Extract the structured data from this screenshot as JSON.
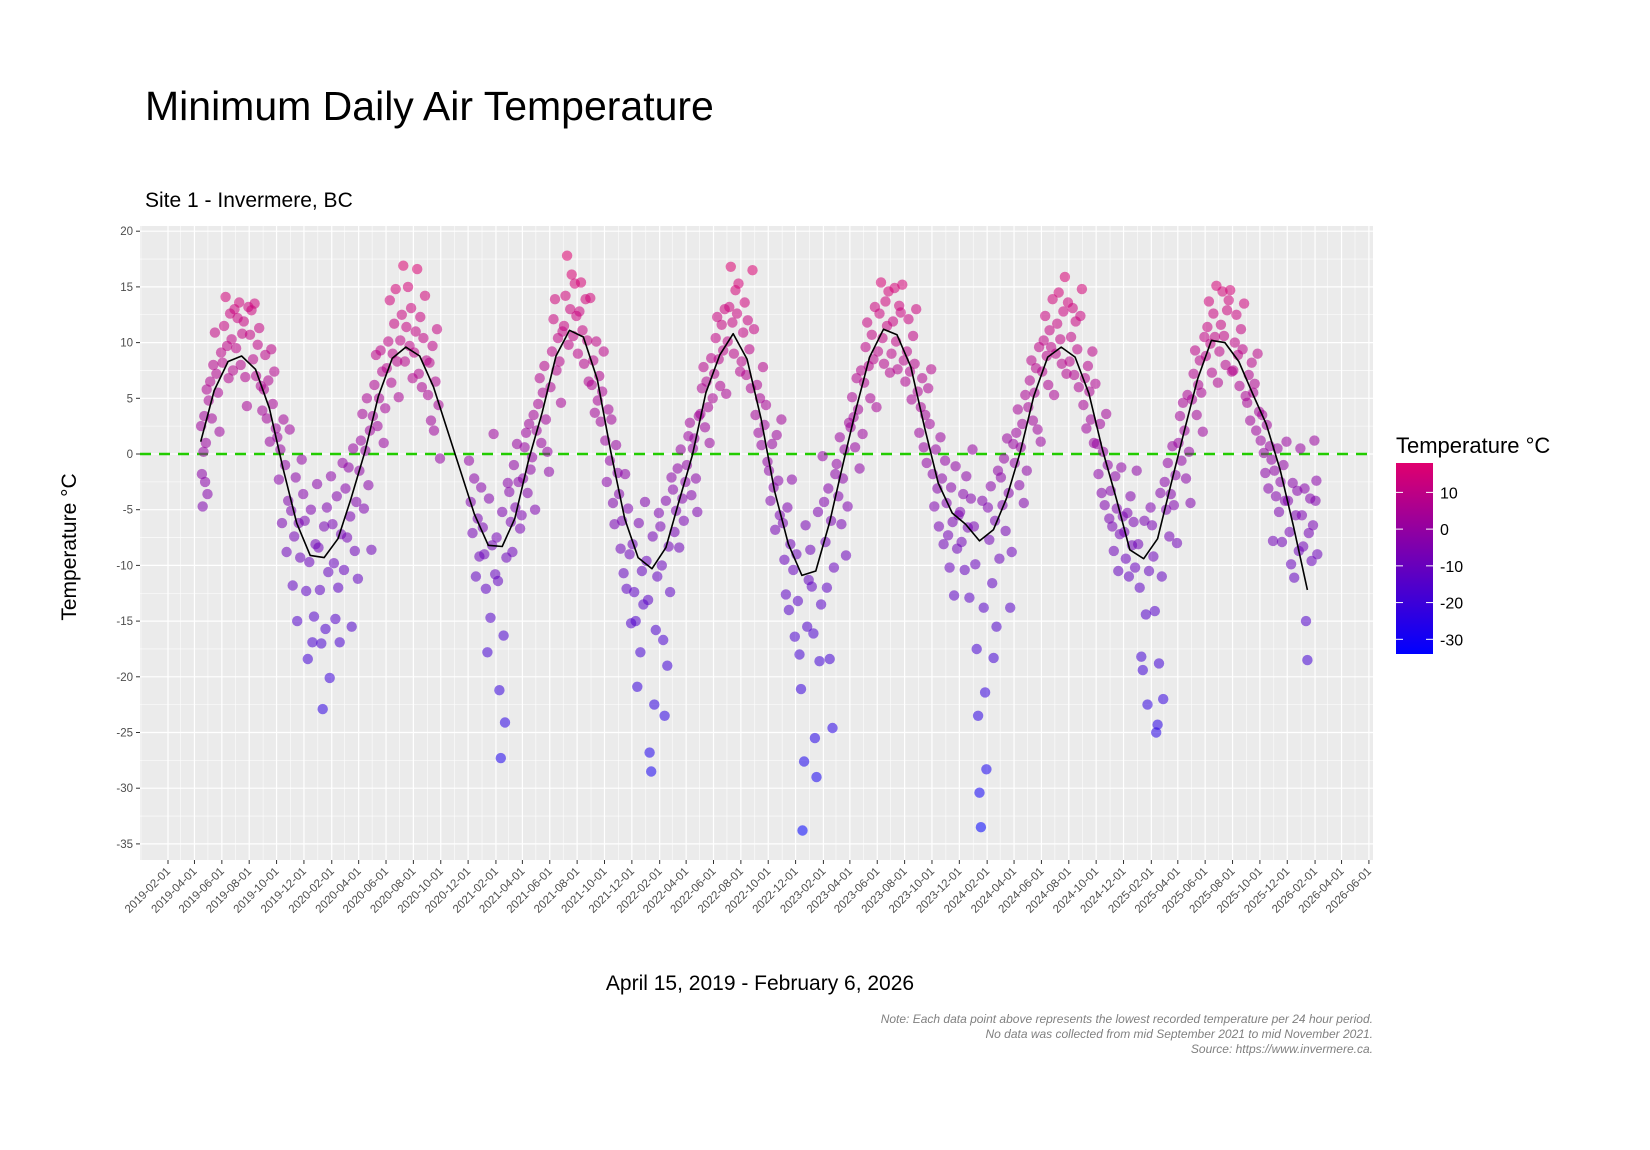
{
  "chart_data": {
    "type": "scatter",
    "title": "Minimum Daily Air Temperature",
    "subtitle": "Site 1 - Invermere, BC",
    "xlabel": "April 15, 2019 - February 6, 2026",
    "ylabel": "Temperature °C",
    "caption": [
      "Note: Each data point above represents the lowest recorded temperature per 24 hour period.",
      "No data was collected from mid September 2021 to mid November 2021.",
      "Source: https://www.invermere.ca."
    ],
    "xlim": [
      "2019-02-01",
      "2026-06-01"
    ],
    "ylim": [
      -35,
      20
    ],
    "y_ticks": [
      20,
      15,
      10,
      5,
      0,
      -5,
      -10,
      -15,
      -20,
      -25,
      -30,
      -35
    ],
    "x_ticks": [
      "2019-02-01",
      "2019-04-01",
      "2019-06-01",
      "2019-08-01",
      "2019-10-01",
      "2019-12-01",
      "2020-02-01",
      "2020-04-01",
      "2020-06-01",
      "2020-08-01",
      "2020-10-01",
      "2020-12-01",
      "2021-02-01",
      "2021-04-01",
      "2021-06-01",
      "2021-08-01",
      "2021-10-01",
      "2021-12-01",
      "2022-02-01",
      "2022-04-01",
      "2022-06-01",
      "2022-08-01",
      "2022-10-01",
      "2022-12-01",
      "2023-02-01",
      "2023-04-01",
      "2023-06-01",
      "2023-08-01",
      "2023-10-01",
      "2023-12-01",
      "2024-02-01",
      "2024-04-01",
      "2024-06-01",
      "2024-08-01",
      "2024-10-01",
      "2024-12-01",
      "2025-02-01",
      "2025-04-01",
      "2025-06-01",
      "2025-08-01",
      "2025-10-01",
      "2025-12-01",
      "2026-02-01",
      "2026-04-01",
      "2026-06-01"
    ],
    "grid": true,
    "reference_line": {
      "y": 0,
      "color": "#22cc00",
      "style": "dashed"
    },
    "legend": {
      "title": "Temperature °C",
      "placement": "right",
      "type": "colorbar",
      "ticks": [
        10,
        0,
        -10,
        -20,
        -30
      ],
      "range": [
        -34,
        18
      ],
      "low_color": "#0000ff",
      "high_color": "#e0006e"
    },
    "monthly_mean_line": {
      "color": "#000000",
      "points": [
        [
          "2019-04",
          1.1
        ],
        [
          "2019-05",
          5.7
        ],
        [
          "2019-06",
          8.3
        ],
        [
          "2019-07",
          8.8
        ],
        [
          "2019-08",
          7.6
        ],
        [
          "2019-09",
          4.1
        ],
        [
          "2019-10",
          -1.2
        ],
        [
          "2019-11",
          -6.2
        ],
        [
          "2019-12",
          -9.1
        ],
        [
          "2020-01",
          -9.3
        ],
        [
          "2020-02",
          -7.6
        ],
        [
          "2020-03",
          -4.0
        ],
        [
          "2020-04",
          0.2
        ],
        [
          "2020-05",
          5.2
        ],
        [
          "2020-06",
          8.6
        ],
        [
          "2020-07",
          9.6
        ],
        [
          "2020-08",
          8.8
        ],
        [
          "2020-09",
          6.0
        ],
        [
          "2020-12",
          -5.4
        ],
        [
          "2021-01",
          -8.2
        ],
        [
          "2021-02",
          -8.3
        ],
        [
          "2021-03",
          -5.8
        ],
        [
          "2021-04",
          -0.5
        ],
        [
          "2021-05",
          3.7
        ],
        [
          "2021-06",
          8.8
        ],
        [
          "2021-07",
          11.1
        ],
        [
          "2021-08",
          10.5
        ],
        [
          "2021-09",
          6.7
        ],
        [
          "2021-10",
          0.2
        ],
        [
          "2021-11",
          -5.8
        ],
        [
          "2021-12",
          -9.3
        ],
        [
          "2022-01",
          -10.3
        ],
        [
          "2022-02",
          -8.4
        ],
        [
          "2022-03",
          -4.4
        ],
        [
          "2022-04",
          -0.1
        ],
        [
          "2022-05",
          5.5
        ],
        [
          "2022-06",
          8.9
        ],
        [
          "2022-07",
          10.8
        ],
        [
          "2022-08",
          8.5
        ],
        [
          "2022-09",
          3.2
        ],
        [
          "2022-10",
          -3.3
        ],
        [
          "2022-11",
          -8.1
        ],
        [
          "2022-12",
          -10.9
        ],
        [
          "2023-01",
          -10.5
        ],
        [
          "2023-02",
          -6.1
        ],
        [
          "2023-03",
          -1.2
        ],
        [
          "2023-04",
          4.1
        ],
        [
          "2023-05",
          8.7
        ],
        [
          "2023-06",
          11.2
        ],
        [
          "2023-07",
          10.7
        ],
        [
          "2023-08",
          7.8
        ],
        [
          "2023-09",
          2.3
        ],
        [
          "2023-10",
          -2.6
        ],
        [
          "2023-11",
          -5.3
        ],
        [
          "2023-12",
          -6.3
        ],
        [
          "2024-01",
          -7.8
        ],
        [
          "2024-02",
          -6.8
        ],
        [
          "2024-03",
          -4.0
        ],
        [
          "2024-04",
          0.2
        ],
        [
          "2024-05",
          5.2
        ],
        [
          "2024-06",
          8.7
        ],
        [
          "2024-07",
          9.6
        ],
        [
          "2024-08",
          8.7
        ],
        [
          "2024-09",
          5.4
        ],
        [
          "2024-10",
          0.4
        ],
        [
          "2024-11",
          -4.0
        ],
        [
          "2024-12",
          -8.6
        ],
        [
          "2025-01",
          -9.4
        ],
        [
          "2025-02",
          -7.6
        ],
        [
          "2025-03",
          -3.0
        ],
        [
          "2025-04",
          2.0
        ],
        [
          "2025-05",
          6.7
        ],
        [
          "2025-06",
          10.2
        ],
        [
          "2025-07",
          10.0
        ],
        [
          "2025-08",
          8.3
        ],
        [
          "2025-09",
          5.4
        ],
        [
          "2025-10",
          2.7
        ],
        [
          "2025-11",
          -1.4
        ],
        [
          "2025-12",
          -6.5
        ],
        [
          "2026-01",
          -12.2
        ]
      ]
    },
    "daily_minimums_by_month": {
      "2019-04": [
        2.5,
        -1.8,
        -4.7,
        0.2,
        3.4,
        -2.5,
        1.0,
        5.8,
        -3.6
      ],
      "2019-05": [
        4.8,
        6.5,
        3.2,
        8.0,
        10.9,
        7.2,
        5.5,
        2.0,
        9.1
      ],
      "2019-06": [
        8.2,
        11.5,
        14.1,
        9.7,
        6.8,
        12.6,
        10.3,
        7.5,
        13.0
      ],
      "2019-07": [
        9.5,
        12.2,
        13.6,
        8.0,
        10.8,
        11.9,
        6.9,
        4.3,
        13.2
      ],
      "2019-08": [
        10.7,
        12.9,
        8.5,
        13.5,
        7.0,
        9.8,
        11.3,
        6.1,
        3.9
      ],
      "2019-09": [
        5.8,
        8.9,
        3.2,
        6.6,
        1.1,
        9.4,
        4.5,
        7.4,
        2.3
      ],
      "2019-10": [
        1.5,
        -2.3,
        0.4,
        -6.2,
        3.1,
        -1.0,
        -8.8,
        -4.2,
        2.2
      ],
      "2019-11": [
        -5.1,
        -11.8,
        -7.4,
        -2.1,
        -15.0,
        -6.2,
        -9.3,
        -0.5,
        -3.6
      ],
      "2019-12": [
        -6.0,
        -12.3,
        -18.4,
        -9.7,
        -5.0,
        -16.9,
        -14.6,
        -8.1,
        -2.7
      ],
      "2020-01": [
        -8.4,
        -12.2,
        -17.0,
        -22.9,
        -6.5,
        -15.7,
        -4.8,
        -10.6,
        -20.1,
        -2.0
      ],
      "2020-02": [
        -6.3,
        -9.8,
        -14.8,
        -3.8,
        -12.0,
        -16.9,
        -7.2,
        -0.8,
        -10.4
      ],
      "2020-03": [
        -3.1,
        -7.5,
        -1.2,
        -5.6,
        -15.5,
        0.5,
        -8.7,
        -4.3,
        -11.2
      ],
      "2020-04": [
        -1.5,
        1.2,
        3.6,
        -4.9,
        0.3,
        5.0,
        -2.8,
        2.1,
        -8.6
      ],
      "2020-05": [
        3.4,
        6.2,
        8.9,
        2.5,
        5.0,
        9.3,
        7.4,
        1.0,
        4.1
      ],
      "2020-06": [
        7.7,
        10.1,
        13.8,
        6.4,
        9.0,
        11.7,
        14.8,
        8.3,
        5.1
      ],
      "2020-07": [
        10.2,
        12.5,
        16.9,
        8.3,
        11.4,
        15.0,
        9.7,
        13.1,
        6.8
      ],
      "2020-08": [
        9.1,
        11.0,
        16.6,
        7.2,
        12.3,
        6.0,
        10.4,
        14.2,
        8.4
      ],
      "2020-09": [
        5.3,
        8.2,
        3.0,
        9.7,
        2.1,
        6.5,
        11.2,
        4.4,
        -0.4
      ],
      "2020-12": [
        -0.6,
        -4.3,
        -7.1,
        -2.2,
        -11.0,
        -5.8,
        -9.2,
        -3.0
      ],
      "2021-01": [
        -6.6,
        -9.0,
        -12.1,
        -17.8,
        -4.0,
        -14.7,
        -8.2,
        1.8,
        -10.8
      ],
      "2021-02": [
        -7.5,
        -11.4,
        -21.2,
        -27.3,
        -5.2,
        -16.3,
        -24.1,
        -9.3,
        -2.6
      ],
      "2021-03": [
        -3.4,
        -6.1,
        -8.8,
        -1.0,
        -4.8,
        0.9,
        -2.5,
        -6.7,
        -5.5
      ],
      "2021-04": [
        -2.2,
        0.6,
        1.9,
        -3.5,
        2.7,
        -1.4,
        -0.3,
        3.5,
        -5.0
      ],
      "2021-05": [
        2.1,
        4.5,
        6.8,
        1.0,
        5.5,
        7.9,
        3.1,
        0.2,
        -1.6
      ],
      "2021-06": [
        6.0,
        9.2,
        12.1,
        13.9,
        7.5,
        10.4,
        8.3,
        4.6,
        11.0
      ],
      "2021-07": [
        11.5,
        14.2,
        17.8,
        9.8,
        13.0,
        16.1,
        10.6,
        15.3,
        12.4
      ],
      "2021-08": [
        9.0,
        12.8,
        15.4,
        11.1,
        8.1,
        13.9,
        10.2,
        6.5,
        14.0
      ],
      "2021-09": [
        6.2,
        8.4,
        3.7,
        10.1,
        4.8,
        7.0,
        2.9,
        5.6,
        9.2
      ],
      "2021-10": [
        1.2,
        -2.5,
        4.0,
        -0.6,
        3.1,
        -4.4,
        -6.3,
        0.8,
        -1.7
      ],
      "2021-11": [
        -3.6,
        -8.5,
        -6.0,
        -10.7,
        -1.8,
        -12.1,
        -4.9,
        -9.0,
        -15.2
      ],
      "2021-12": [
        -8.1,
        -12.4,
        -15.0,
        -20.9,
        -6.2,
        -17.8,
        -10.5,
        -13.5,
        -4.3
      ],
      "2022-01": [
        -9.6,
        -13.1,
        -26.8,
        -28.5,
        -7.4,
        -22.5,
        -15.8,
        -11.0,
        -5.3
      ],
      "2022-02": [
        -6.5,
        -10.0,
        -16.7,
        -23.5,
        -4.2,
        -19.0,
        -8.3,
        -12.4,
        -2.1
      ],
      "2022-03": [
        -3.2,
        -7.0,
        -5.1,
        -1.3,
        -8.4,
        0.4,
        -4.0,
        -6.0,
        -2.5
      ],
      "2022-04": [
        -1.0,
        1.6,
        2.8,
        -3.7,
        0.5,
        1.4,
        -2.2,
        -5.2,
        3.4
      ],
      "2022-05": [
        3.6,
        5.9,
        7.8,
        2.4,
        6.5,
        4.2,
        1.0,
        8.6,
        5.0
      ],
      "2022-06": [
        7.2,
        10.4,
        12.3,
        8.5,
        6.1,
        11.6,
        9.3,
        13.0,
        5.4
      ],
      "2022-07": [
        10.1,
        13.2,
        16.8,
        11.8,
        9.0,
        14.7,
        12.6,
        15.3,
        7.4
      ],
      "2022-08": [
        8.3,
        10.9,
        13.6,
        7.1,
        12.0,
        9.4,
        5.9,
        16.5,
        11.2
      ],
      "2022-09": [
        3.5,
        6.2,
        1.9,
        5.0,
        0.8,
        7.8,
        2.6,
        4.4,
        -0.7
      ],
      "2022-10": [
        -1.5,
        -4.2,
        0.9,
        -3.0,
        -6.8,
        1.7,
        -2.4,
        -5.5,
        3.1
      ],
      "2022-11": [
        -6.2,
        -9.5,
        -12.6,
        -4.8,
        -14.0,
        -8.1,
        -2.3,
        -10.4,
        -16.4
      ],
      "2022-12": [
        -9.0,
        -13.2,
        -18.0,
        -21.1,
        -33.8,
        -27.6,
        -6.4,
        -15.5,
        -11.3
      ],
      "2023-01": [
        -8.6,
        -11.9,
        -16.1,
        -25.5,
        -29.0,
        -5.2,
        -18.6,
        -13.5,
        -0.2
      ],
      "2023-02": [
        -4.3,
        -7.9,
        -12.0,
        -3.1,
        -18.4,
        -6.0,
        -24.6,
        -10.2,
        -1.8
      ],
      "2023-03": [
        -0.9,
        -3.8,
        1.5,
        -6.3,
        -2.2,
        0.4,
        -9.1,
        -4.7,
        2.8
      ],
      "2023-04": [
        2.4,
        5.1,
        3.3,
        0.6,
        6.8,
        4.0,
        -1.3,
        7.5,
        1.8
      ],
      "2023-05": [
        6.4,
        9.6,
        11.8,
        7.9,
        5.0,
        10.7,
        8.5,
        13.2,
        4.2
      ],
      "2023-06": [
        9.2,
        12.6,
        15.4,
        10.4,
        8.1,
        13.7,
        11.5,
        14.6,
        7.3
      ],
      "2023-07": [
        9.0,
        11.9,
        14.9,
        10.1,
        7.6,
        13.3,
        12.7,
        15.2,
        8.4
      ],
      "2023-08": [
        6.5,
        9.2,
        12.1,
        7.4,
        4.9,
        10.6,
        8.1,
        13.0,
        5.6
      ],
      "2023-09": [
        1.9,
        4.2,
        6.8,
        0.6,
        3.5,
        -0.8,
        5.9,
        2.7,
        7.6
      ],
      "2023-10": [
        -1.8,
        -4.7,
        0.4,
        -3.1,
        -6.5,
        1.5,
        -2.2,
        -8.1,
        -0.6
      ],
      "2023-11": [
        -4.4,
        -7.3,
        -10.2,
        -3.0,
        -6.1,
        -12.7,
        -1.1,
        -8.5,
        -5.5
      ],
      "2023-12": [
        -5.2,
        -7.9,
        -3.6,
        -10.4,
        -2.0,
        -6.6,
        -12.9,
        -4.0,
        0.4
      ],
      "2024-01": [
        -6.5,
        -9.9,
        -17.5,
        -23.5,
        -30.4,
        -33.5,
        -4.2,
        -13.8,
        -21.4,
        -28.3
      ],
      "2024-02": [
        -4.8,
        -7.7,
        -2.9,
        -11.6,
        -18.3,
        -6.0,
        -15.5,
        -1.5,
        -9.4
      ],
      "2024-03": [
        -2.1,
        -4.6,
        -0.4,
        -6.9,
        1.4,
        -3.5,
        -13.8,
        -8.8,
        0.9
      ],
      "2024-04": [
        -0.8,
        1.9,
        4.0,
        -2.8,
        0.6,
        2.7,
        -4.4,
        5.3,
        -1.5
      ],
      "2024-05": [
        4.2,
        6.6,
        8.4,
        3.0,
        5.5,
        7.7,
        2.2,
        9.6,
        1.1
      ],
      "2024-06": [
        7.4,
        10.2,
        12.4,
        8.8,
        6.2,
        11.1,
        9.6,
        13.9,
        5.3
      ],
      "2024-07": [
        9.0,
        11.7,
        14.5,
        10.3,
        8.1,
        12.8,
        15.9,
        7.2,
        13.6
      ],
      "2024-08": [
        8.3,
        10.5,
        13.1,
        7.1,
        11.9,
        9.4,
        6.0,
        12.4,
        14.8
      ],
      "2024-09": [
        4.4,
        6.8,
        2.3,
        7.9,
        5.6,
        3.1,
        9.2,
        1.0,
        6.3
      ],
      "2024-10": [
        0.9,
        -1.8,
        2.7,
        -3.5,
        0.2,
        -4.6,
        3.6,
        -1.0,
        -5.8
      ],
      "2024-11": [
        -3.3,
        -6.5,
        -8.7,
        -2.0,
        -4.9,
        -10.5,
        -7.2,
        -1.2,
        -5.6
      ],
      "2024-12": [
        -7.0,
        -9.4,
        -5.3,
        -11.0,
        -3.8,
        -8.2,
        -6.1,
        -10.2,
        -1.5
      ],
      "2025-01": [
        -8.1,
        -12.0,
        -18.2,
        -19.4,
        -6.0,
        -14.4,
        -22.5,
        -10.5,
        -4.8
      ],
      "2025-02": [
        -6.4,
        -9.2,
        -14.1,
        -25.0,
        -24.3,
        -18.8,
        -3.5,
        -11.0,
        -22.0
      ],
      "2025-03": [
        -2.5,
        -5.0,
        -0.8,
        -7.4,
        -3.6,
        0.7,
        -4.6,
        -1.9,
        -8.0
      ],
      "2025-04": [
        1.0,
        3.4,
        -0.6,
        4.6,
        2.1,
        -2.2,
        5.3,
        0.2,
        -4.4
      ],
      "2025-05": [
        4.9,
        7.2,
        9.3,
        3.5,
        6.2,
        8.4,
        5.5,
        2.0,
        10.5
      ],
      "2025-06": [
        8.8,
        11.4,
        13.7,
        9.9,
        7.3,
        12.6,
        10.5,
        15.1,
        6.4
      ],
      "2025-07": [
        9.2,
        11.6,
        14.6,
        10.6,
        8.0,
        12.9,
        13.8,
        14.7,
        7.4
      ],
      "2025-08": [
        7.5,
        10.0,
        12.5,
        8.9,
        6.1,
        11.2,
        9.4,
        13.5,
        5.2
      ],
      "2025-09": [
        4.6,
        7.1,
        3.0,
        8.2,
        5.5,
        6.3,
        2.1,
        9.0,
        3.8
      ],
      "2025-10": [
        1.2,
        3.5,
        0.1,
        -1.7,
        2.6,
        -3.1,
        0.7,
        -0.5,
        -7.8
      ],
      "2025-11": [
        -1.5,
        -3.8,
        0.5,
        -5.2,
        -2.5,
        -7.9,
        -1.0,
        -4.2,
        1.1
      ],
      "2025-12": [
        -4.2,
        -7.0,
        -9.9,
        -2.6,
        -11.1,
        -5.5,
        -3.3,
        -8.7,
        0.5
      ],
      "2026-01": [
        -5.5,
        -8.3,
        -3.1,
        -15.0,
        -18.5,
        -7.1,
        -4.0,
        -9.6,
        -6.4,
        1.2
      ],
      "2026-02": [
        -4.2,
        -2.4,
        -9.0
      ]
    },
    "data_start": "2019-04-15",
    "data_end": "2026-02-06"
  }
}
